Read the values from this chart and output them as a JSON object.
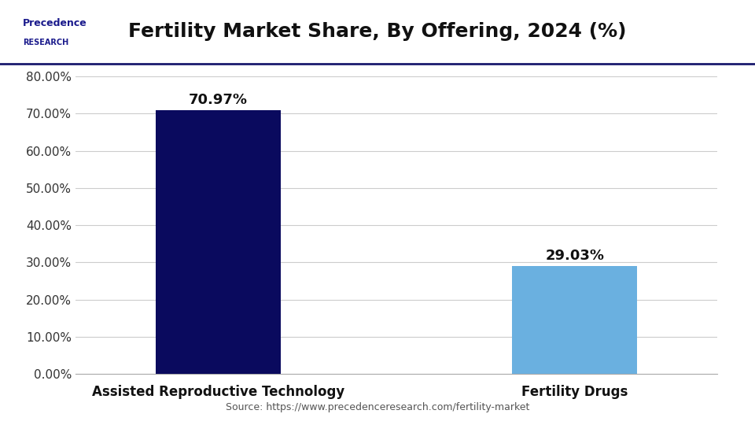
{
  "title": "Fertility Market Share, By Offering, 2024 (%)",
  "categories": [
    "Assisted Reproductive Technology",
    "Fertility Drugs"
  ],
  "values": [
    70.97,
    29.03
  ],
  "bar_colors": [
    "#0a0a5e",
    "#6ab0e0"
  ],
  "ylim": [
    0,
    80
  ],
  "yticks": [
    0,
    10,
    20,
    30,
    40,
    50,
    60,
    70,
    80
  ],
  "ytick_labels": [
    "0.00%",
    "10.00%",
    "20.00%",
    "30.00%",
    "40.00%",
    "50.00%",
    "60.00%",
    "70.00%",
    "80.00%"
  ],
  "bar_labels": [
    "70.97%",
    "29.03%"
  ],
  "source": "Source: https://www.precedenceresearch.com/fertility-market",
  "background_color": "#ffffff",
  "title_fontsize": 18,
  "label_fontsize": 12,
  "header_line_color": "#1a1a6e"
}
